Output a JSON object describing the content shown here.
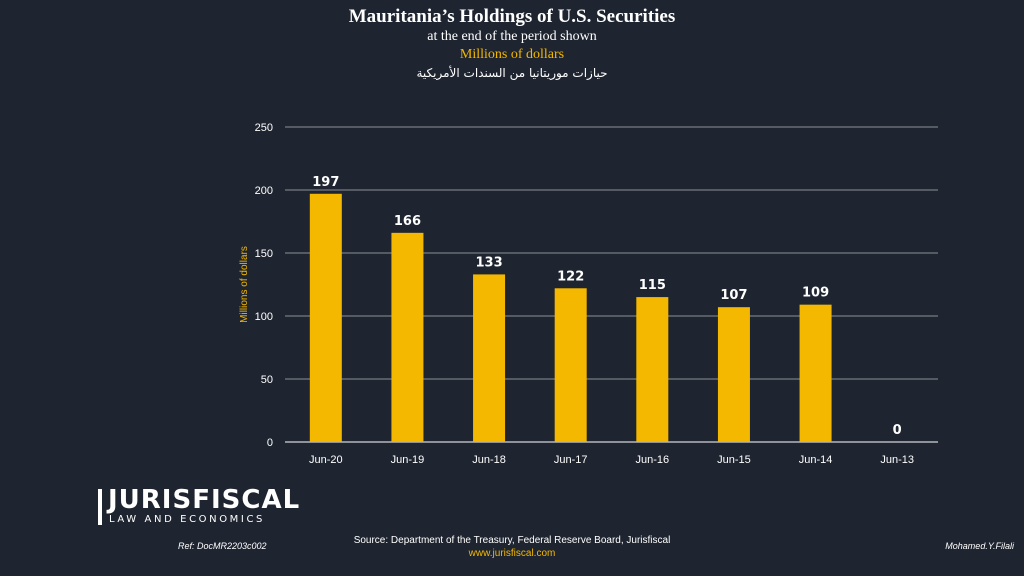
{
  "header": {
    "title": "Mauritania’s Holdings of U.S. Securities",
    "subtitle": "at the end of the period shown",
    "units": "Millions  of dollars",
    "arabic_title": "حيازات موريتانيا من السندات الأمريكية"
  },
  "colors": {
    "background": "#1f2530",
    "bar": "#f5b800",
    "text": "#ffffff",
    "accent": "#f5b800",
    "grid": "#e6e6e6"
  },
  "chart_data": {
    "type": "bar",
    "categories": [
      "Jun-20",
      "Jun-19",
      "Jun-18",
      "Jun-17",
      "Jun-16",
      "Jun-15",
      "Jun-14",
      "Jun-13"
    ],
    "values": [
      197,
      166,
      133,
      122,
      115,
      107,
      109,
      0
    ],
    "data_labels": [
      "197",
      "166",
      "133",
      "122",
      "115",
      "107",
      "109",
      "0"
    ],
    "ylabel": "Millions of dollars",
    "ylim": [
      0,
      250
    ],
    "yticks": [
      0,
      50,
      100,
      150,
      200,
      250
    ],
    "grid": true,
    "legend": "none"
  },
  "logo": {
    "name": "JURISFISCAL",
    "tagline": "LAW AND ECONOMICS"
  },
  "footer": {
    "ref": "Ref: DocMR2203c002",
    "source": "Source: Department of the Treasury, Federal Reserve Board, Jurisfiscal",
    "website": "www.jurisfiscal.com",
    "author": "Mohamed.Y.Filali"
  }
}
